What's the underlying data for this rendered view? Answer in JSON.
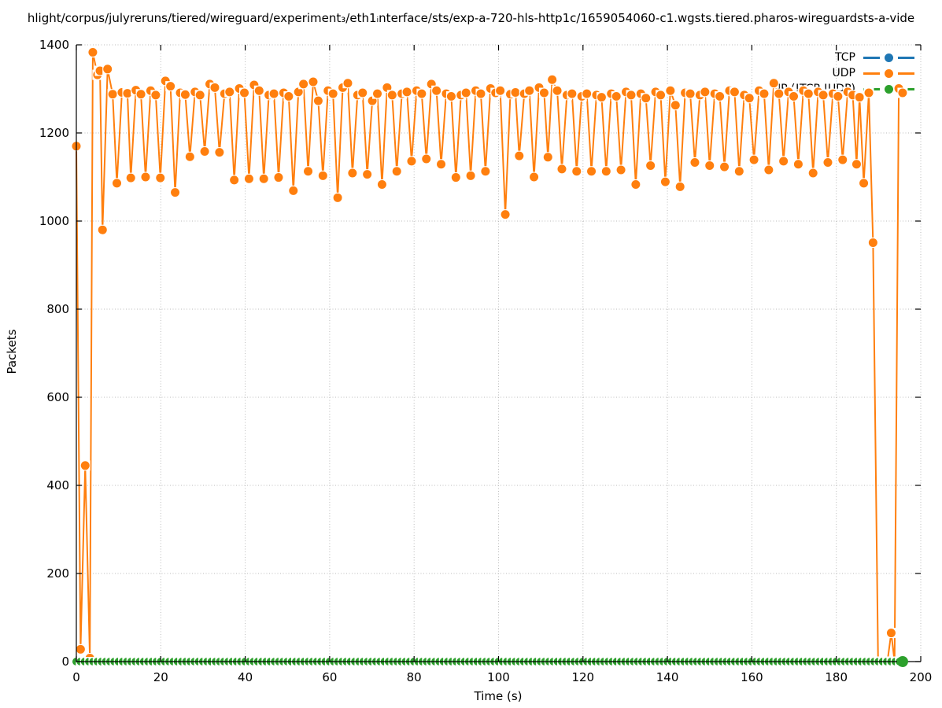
{
  "title": "hlight/corpus/julyreruns/tiered/wireguard/experiment₃/eth1ᵢnterface/sts/exp-a-720-hls-http1c/1659054060-c1.wgsts.tiered.pharos-wireguardsts-a-vide",
  "axes": {
    "x": {
      "label": "Time (s)",
      "min": 0,
      "max": 200,
      "ticks": [
        0,
        20,
        40,
        60,
        80,
        100,
        120,
        140,
        160,
        180,
        200
      ]
    },
    "y": {
      "label": "Packets",
      "min": 0,
      "max": 1400,
      "ticks": [
        0,
        200,
        400,
        600,
        800,
        1000,
        1200,
        1400
      ]
    }
  },
  "legend": {
    "position": "top-right-inside",
    "items": [
      {
        "label": "TCP",
        "color": "#1f77b4"
      },
      {
        "label": "UDP",
        "color": "#ff7f0e"
      },
      {
        "label": "IP (!TCP !UDP)",
        "color": "#2ca02c"
      }
    ]
  },
  "chart_data": {
    "type": "line",
    "title": "hlight/corpus/julyreruns/tiered/wireguard/experiment₃/eth1ᵢnterface/sts/exp-a-720-hls-http1c/1659054060-c1.wgsts.tiered.pharos-wireguardsts-a-vide",
    "xlabel": "Time (s)",
    "ylabel": "Packets",
    "xlim": [
      0,
      200
    ],
    "ylim": [
      0,
      1400
    ],
    "grid": true,
    "grid_style": "dotted",
    "legend_position": "top-right-inside",
    "marker": "filled-circle",
    "series": [
      {
        "name": "TCP",
        "color": "#1f77b4",
        "visible": false,
        "constant": {
          "y": 0,
          "x_start": 0,
          "x_end": 196,
          "x_step": 1
        }
      },
      {
        "name": "UDP",
        "color": "#ff7f0e",
        "visible": true,
        "points": [
          [
            0,
            1170
          ],
          [
            1,
            28
          ],
          [
            2.1,
            445
          ],
          [
            3.2,
            8
          ],
          [
            3.9,
            1383
          ],
          [
            5,
            1332
          ],
          [
            5.6,
            1341
          ],
          [
            6.2,
            980
          ],
          [
            7.4,
            1345
          ],
          [
            8.6,
            1288
          ],
          [
            9.6,
            1086
          ],
          [
            10.8,
            1292
          ],
          [
            12.1,
            1290
          ],
          [
            12.9,
            1098
          ],
          [
            14.1,
            1297
          ],
          [
            15.3,
            1288
          ],
          [
            16.4,
            1100
          ],
          [
            17.6,
            1296
          ],
          [
            18.8,
            1286
          ],
          [
            19.9,
            1098
          ],
          [
            21.1,
            1318
          ],
          [
            22.3,
            1306
          ],
          [
            23.4,
            1065
          ],
          [
            24.6,
            1291
          ],
          [
            25.8,
            1287
          ],
          [
            26.9,
            1146
          ],
          [
            28.1,
            1293
          ],
          [
            29.3,
            1286
          ],
          [
            30.4,
            1158
          ],
          [
            31.6,
            1311
          ],
          [
            32.8,
            1303
          ],
          [
            33.9,
            1156
          ],
          [
            35.1,
            1289
          ],
          [
            36.3,
            1293
          ],
          [
            37.4,
            1093
          ],
          [
            38.6,
            1301
          ],
          [
            39.8,
            1291
          ],
          [
            40.9,
            1096
          ],
          [
            42.1,
            1309
          ],
          [
            43.3,
            1296
          ],
          [
            44.4,
            1096
          ],
          [
            45.6,
            1286
          ],
          [
            46.8,
            1289
          ],
          [
            47.9,
            1099
          ],
          [
            49.1,
            1291
          ],
          [
            50.3,
            1283
          ],
          [
            51.4,
            1069
          ],
          [
            52.6,
            1293
          ],
          [
            53.8,
            1311
          ],
          [
            54.9,
            1113
          ],
          [
            56.1,
            1316
          ],
          [
            57.3,
            1273
          ],
          [
            58.4,
            1103
          ],
          [
            59.6,
            1296
          ],
          [
            60.8,
            1289
          ],
          [
            61.9,
            1053
          ],
          [
            63.1,
            1303
          ],
          [
            64.3,
            1313
          ],
          [
            65.4,
            1109
          ],
          [
            66.6,
            1286
          ],
          [
            67.8,
            1291
          ],
          [
            68.9,
            1106
          ],
          [
            70.1,
            1273
          ],
          [
            71.3,
            1289
          ],
          [
            72.4,
            1083
          ],
          [
            73.6,
            1303
          ],
          [
            74.8,
            1286
          ],
          [
            75.9,
            1113
          ],
          [
            77.1,
            1289
          ],
          [
            78.3,
            1293
          ],
          [
            79.4,
            1136
          ],
          [
            80.6,
            1296
          ],
          [
            81.8,
            1289
          ],
          [
            82.9,
            1141
          ],
          [
            84.1,
            1311
          ],
          [
            85.3,
            1296
          ],
          [
            86.4,
            1129
          ],
          [
            87.6,
            1289
          ],
          [
            88.8,
            1283
          ],
          [
            89.9,
            1099
          ],
          [
            91.1,
            1286
          ],
          [
            92.3,
            1291
          ],
          [
            93.4,
            1103
          ],
          [
            94.6,
            1296
          ],
          [
            95.8,
            1289
          ],
          [
            96.9,
            1113
          ],
          [
            98.1,
            1301
          ],
          [
            99.3,
            1291
          ],
          [
            100.4,
            1296
          ],
          [
            101.6,
            1015
          ],
          [
            102.8,
            1288
          ],
          [
            104,
            1292
          ],
          [
            104.9,
            1148
          ],
          [
            106.1,
            1289
          ],
          [
            107.3,
            1296
          ],
          [
            108.4,
            1100
          ],
          [
            109.6,
            1303
          ],
          [
            110.8,
            1291
          ],
          [
            111.7,
            1145
          ],
          [
            112.7,
            1321
          ],
          [
            113.9,
            1296
          ],
          [
            115,
            1118
          ],
          [
            116.2,
            1286
          ],
          [
            117.4,
            1289
          ],
          [
            118.5,
            1113
          ],
          [
            119.7,
            1283
          ],
          [
            120.9,
            1289
          ],
          [
            122,
            1113
          ],
          [
            123.2,
            1286
          ],
          [
            124.4,
            1281
          ],
          [
            125.5,
            1113
          ],
          [
            126.7,
            1289
          ],
          [
            127.9,
            1283
          ],
          [
            129,
            1116
          ],
          [
            130.2,
            1293
          ],
          [
            131.4,
            1286
          ],
          [
            132.5,
            1083
          ],
          [
            133.7,
            1289
          ],
          [
            134.9,
            1279
          ],
          [
            136,
            1126
          ],
          [
            137.2,
            1293
          ],
          [
            138.4,
            1286
          ],
          [
            139.5,
            1089
          ],
          [
            140.7,
            1296
          ],
          [
            141.9,
            1263
          ],
          [
            143,
            1078
          ],
          [
            144.2,
            1291
          ],
          [
            145.4,
            1289
          ],
          [
            146.5,
            1133
          ],
          [
            147.7,
            1286
          ],
          [
            148.9,
            1293
          ],
          [
            150,
            1126
          ],
          [
            151.2,
            1289
          ],
          [
            152.4,
            1283
          ],
          [
            153.5,
            1123
          ],
          [
            154.7,
            1296
          ],
          [
            155.9,
            1293
          ],
          [
            157,
            1113
          ],
          [
            158.2,
            1286
          ],
          [
            159.4,
            1279
          ],
          [
            160.5,
            1139
          ],
          [
            161.7,
            1296
          ],
          [
            162.9,
            1289
          ],
          [
            164,
            1116
          ],
          [
            165.2,
            1313
          ],
          [
            166.4,
            1289
          ],
          [
            167.5,
            1136
          ],
          [
            168.7,
            1293
          ],
          [
            169.9,
            1283
          ],
          [
            171,
            1129
          ],
          [
            172.2,
            1296
          ],
          [
            173.4,
            1289
          ],
          [
            174.5,
            1109
          ],
          [
            175.7,
            1293
          ],
          [
            176.9,
            1286
          ],
          [
            178,
            1133
          ],
          [
            179.2,
            1289
          ],
          [
            180.4,
            1283
          ],
          [
            181.5,
            1139
          ],
          [
            182.7,
            1293
          ],
          [
            183.9,
            1286
          ],
          [
            184.8,
            1129
          ],
          [
            185.5,
            1281
          ],
          [
            186.5,
            1086
          ],
          [
            187.7,
            1291
          ],
          [
            188.7,
            951
          ],
          [
            189.9,
            0
          ],
          [
            191,
            0
          ],
          [
            192.1,
            0
          ],
          [
            193,
            65
          ],
          [
            193.8,
            0
          ],
          [
            194.8,
            1301
          ],
          [
            195.7,
            1291
          ]
        ]
      },
      {
        "name": "IP (!TCP !UDP)",
        "color": "#2ca02c",
        "visible": true,
        "constant": {
          "y": 0,
          "x_start": 0,
          "x_end": 195,
          "x_step": 1
        },
        "final_point": [
          195.7,
          0
        ]
      }
    ]
  }
}
